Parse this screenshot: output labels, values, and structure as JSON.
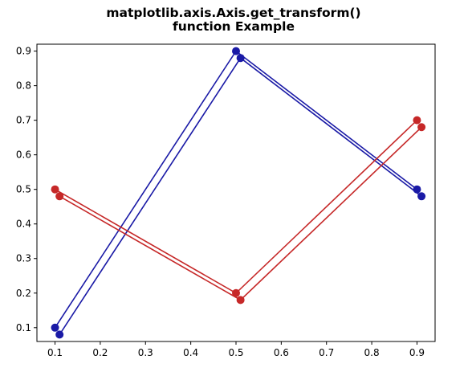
{
  "chart_data": {
    "type": "line",
    "title": "matplotlib.axis.Axis.get_transform()\nfunction Example",
    "xlabel": "",
    "ylabel": "",
    "xlim": [
      0.06,
      0.94
    ],
    "ylim": [
      0.06,
      0.92
    ],
    "xticks": [
      0.1,
      0.2,
      0.3,
      0.4,
      0.5,
      0.6,
      0.7,
      0.8,
      0.9
    ],
    "yticks": [
      0.1,
      0.2,
      0.3,
      0.4,
      0.5,
      0.6,
      0.7,
      0.8,
      0.9
    ],
    "grid": false,
    "series": [
      {
        "x": [
          0.1,
          0.5,
          0.9
        ],
        "y": [
          0.1,
          0.9,
          0.5
        ],
        "color": "#1a1aa6"
      },
      {
        "x": [
          0.11,
          0.51,
          0.91
        ],
        "y": [
          0.08,
          0.88,
          0.48
        ],
        "color": "#1a1aa6"
      },
      {
        "x": [
          0.1,
          0.5,
          0.9
        ],
        "y": [
          0.5,
          0.2,
          0.7
        ],
        "color": "#c62828"
      },
      {
        "x": [
          0.11,
          0.51,
          0.91
        ],
        "y": [
          0.48,
          0.18,
          0.68
        ],
        "color": "#c62828"
      }
    ]
  }
}
